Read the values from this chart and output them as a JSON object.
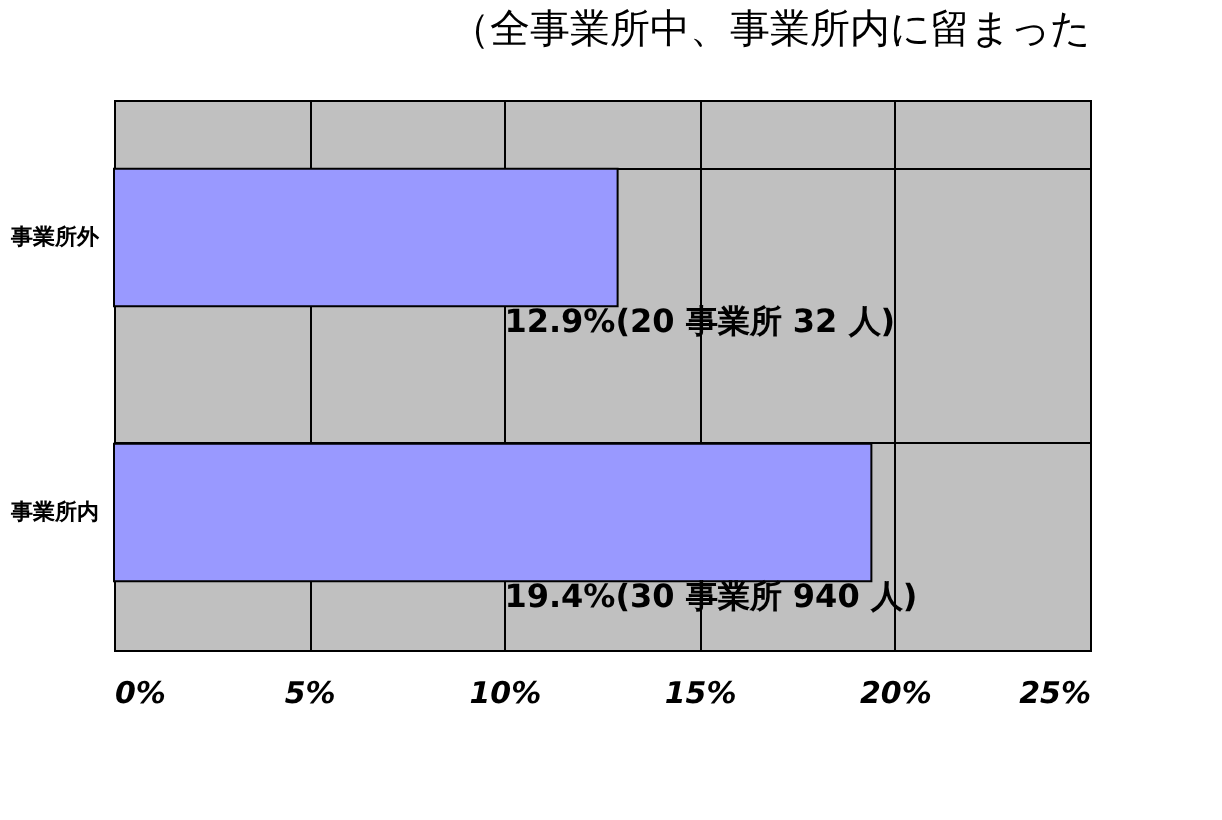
{
  "chart_data": {
    "type": "bar",
    "orientation": "horizontal",
    "title": "（全事業所中、事業所内に留まった",
    "categories": [
      "事業所外",
      "事業所内"
    ],
    "values": [
      12.9,
      19.4
    ],
    "value_labels": [
      "12.9%(20 事業所 32 人)",
      "19.4%(30 事業所 940 人)"
    ],
    "color": "#9999ff",
    "xlim": [
      0,
      25
    ],
    "xticks": [
      {
        "value": 0,
        "label": "0%"
      },
      {
        "value": 5,
        "label": "5%"
      },
      {
        "value": 10,
        "label": "10%"
      },
      {
        "value": 15,
        "label": "15%"
      },
      {
        "value": 20,
        "label": "20%"
      },
      {
        "value": 25,
        "label": "25%"
      }
    ],
    "grid": true
  }
}
